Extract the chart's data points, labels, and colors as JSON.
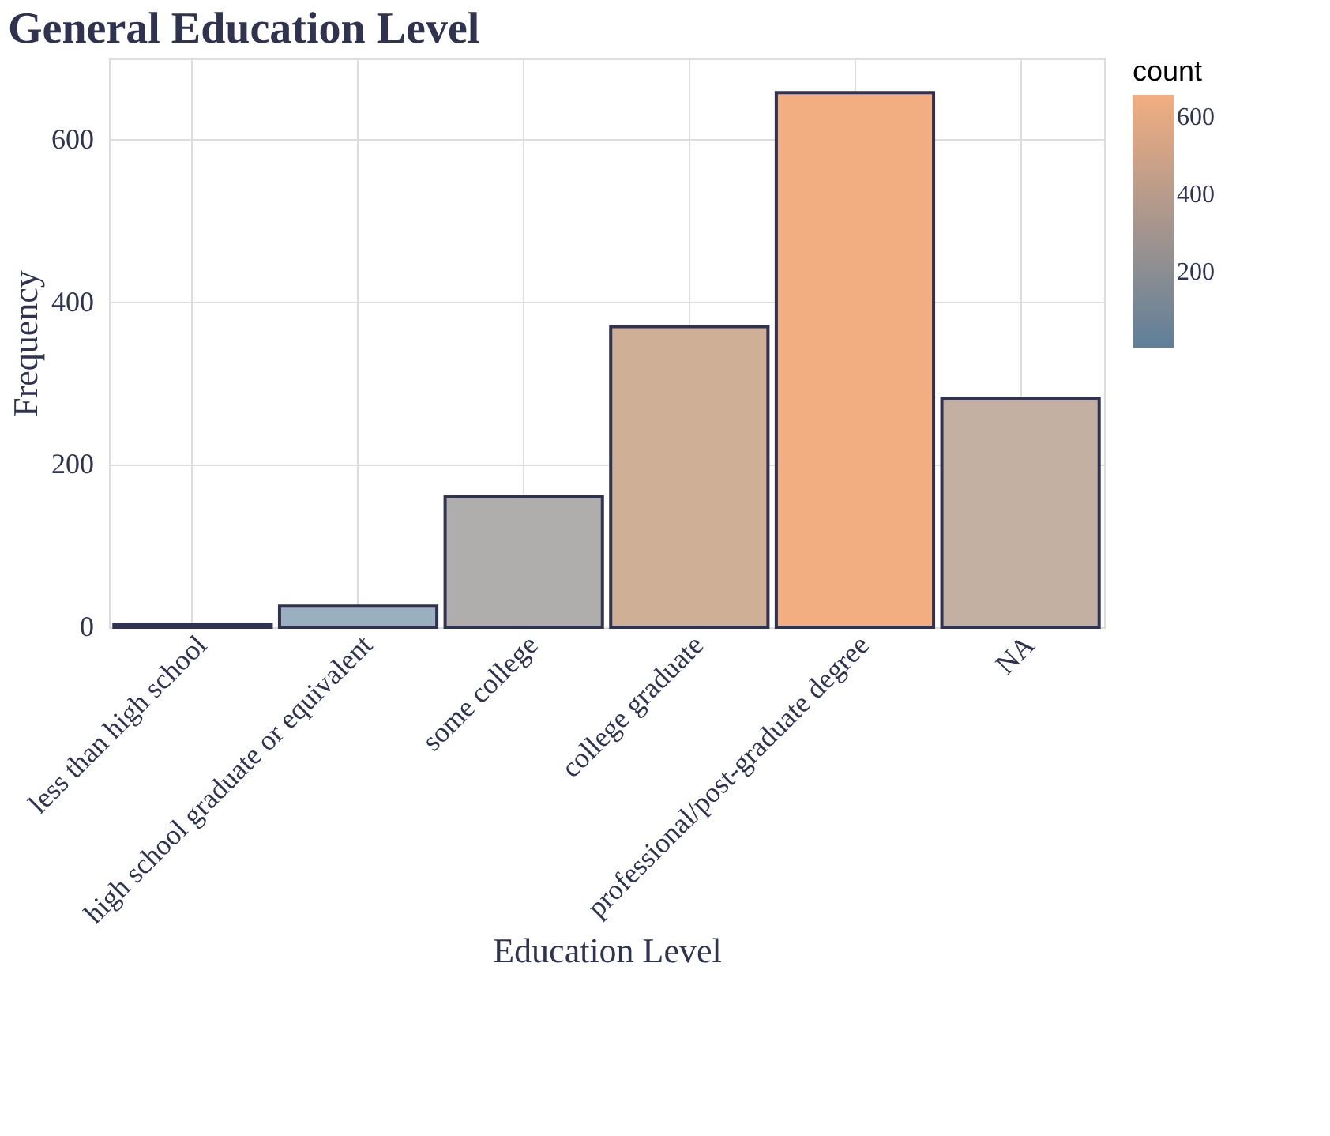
{
  "chart_data": {
    "type": "bar",
    "title": "General Education Level",
    "xlabel": "Education Level",
    "ylabel": "Frequency",
    "clabel": "count",
    "categories": [
      "less than high school",
      "high school graduate or equivalent",
      "some college",
      "college graduate",
      "professional/post-graduate degree",
      "NA"
    ],
    "values": [
      4,
      26,
      161,
      370,
      658,
      282
    ],
    "colors": [
      "#5f7f99",
      "#9aafbf",
      "#b0aead",
      "#cfb097",
      "#f2ae80",
      "#c4b0a2"
    ],
    "ylim": [
      0,
      700
    ],
    "yticks": [
      0,
      200,
      400,
      600
    ],
    "clim": [
      4,
      658
    ],
    "cticks": [
      200,
      400,
      600
    ],
    "grid": true
  }
}
